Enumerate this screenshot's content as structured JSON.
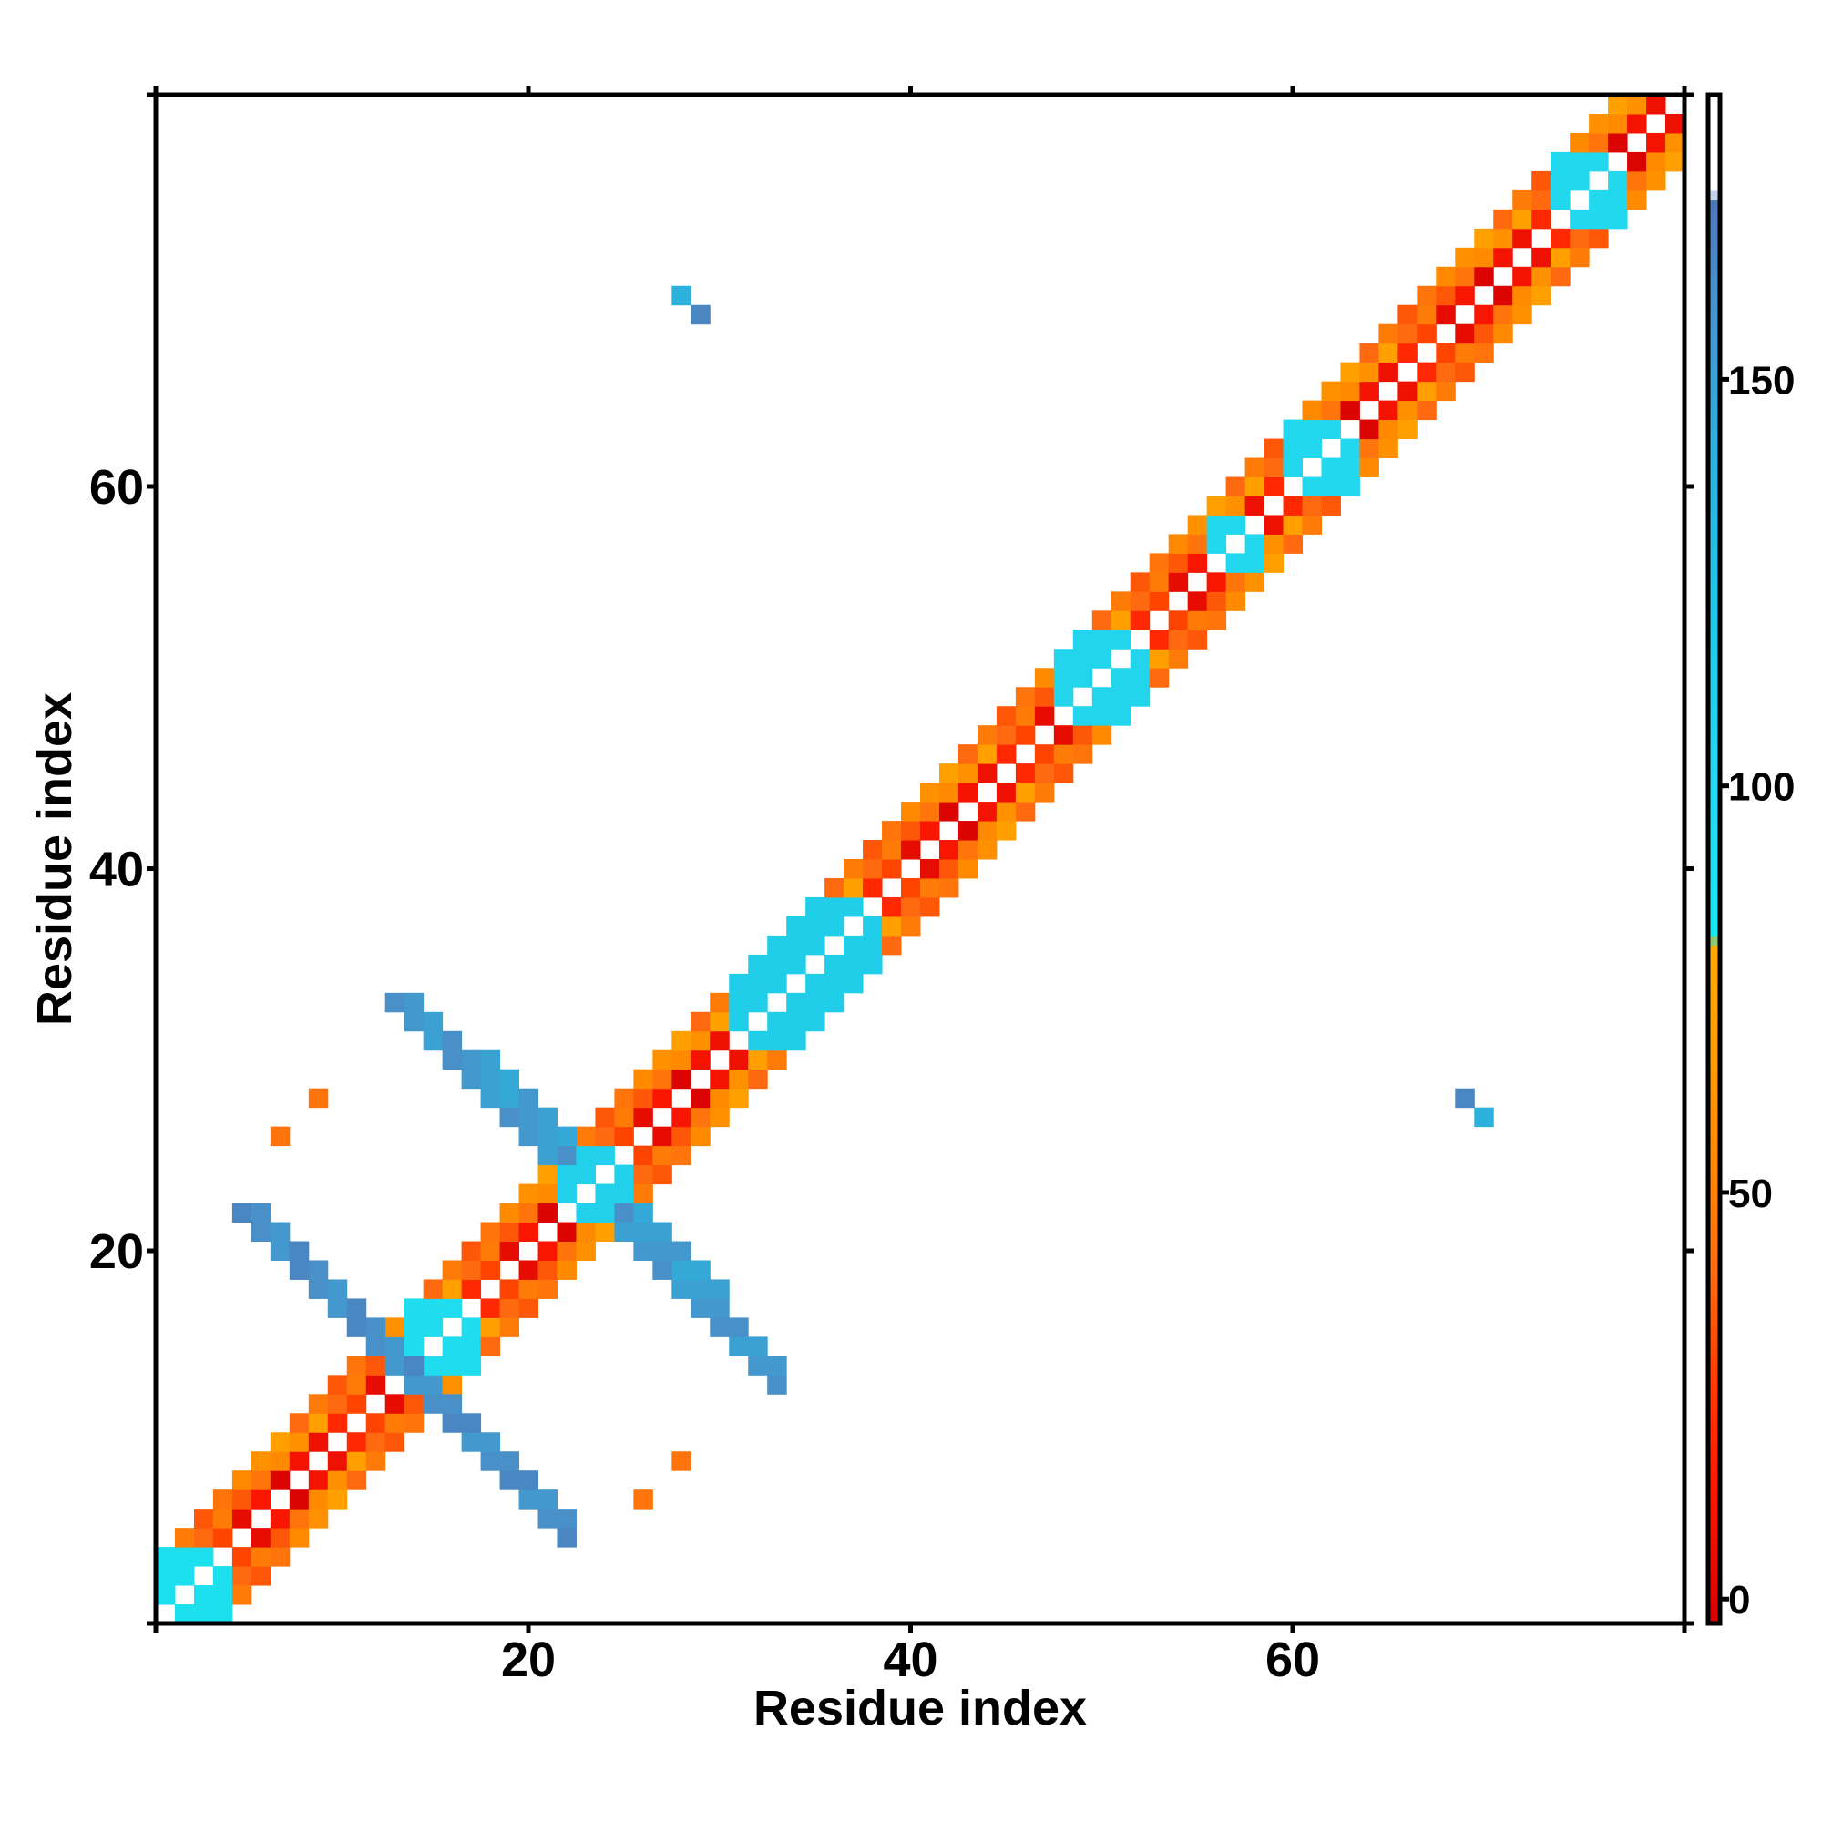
{
  "chart_data": {
    "type": "heatmap",
    "title": "",
    "xlabel": "Residue index",
    "ylabel": "Residue index",
    "xlim": [
      0.5,
      80.5
    ],
    "ylim": [
      0.5,
      80.5
    ],
    "x_ticks": [
      20,
      40,
      60
    ],
    "y_ticks": [
      20,
      40,
      60
    ],
    "colorbar": {
      "range": [
        -3,
        185
      ],
      "ticks": [
        0,
        50,
        100,
        150
      ],
      "stops": [
        {
          "v": -3,
          "c": "#d40000"
        },
        {
          "v": 15,
          "c": "#ff1a00"
        },
        {
          "v": 30,
          "c": "#ff4400"
        },
        {
          "v": 40,
          "c": "#ff6a10"
        },
        {
          "v": 55,
          "c": "#ff8a00"
        },
        {
          "v": 70,
          "c": "#ffa000"
        },
        {
          "v": 80,
          "c": "#ffaa00"
        },
        {
          "v": 82,
          "c": "#18e6ee"
        },
        {
          "v": 100,
          "c": "#22d8ee"
        },
        {
          "v": 120,
          "c": "#20c8e6"
        },
        {
          "v": 140,
          "c": "#2cb0dc"
        },
        {
          "v": 160,
          "c": "#4a90c8"
        },
        {
          "v": 172,
          "c": "#4a78b8"
        },
        {
          "v": 173,
          "c": "#ffffff"
        },
        {
          "v": 185,
          "c": "#ffffff"
        }
      ]
    },
    "pattern_note": "checkerboard band along diagonal plus anti-parallel beta-hairpin bands",
    "diagonal_band": {
      "from": 1,
      "to": 80,
      "near_offsets": [
        1,
        2,
        3
      ],
      "helix_segments": [
        {
          "start": 1,
          "end": 4,
          "value": 90
        },
        {
          "start": 14,
          "end": 17,
          "value": 95
        },
        {
          "start": 22,
          "end": 25,
          "value": 110
        },
        {
          "start": 31,
          "end": 38,
          "value": 112
        },
        {
          "start": 48,
          "end": 52,
          "value": 105
        },
        {
          "start": 56,
          "end": 58,
          "value": 100
        },
        {
          "start": 60,
          "end": 63,
          "value": 100
        },
        {
          "start": 74,
          "end": 77,
          "value": 100
        }
      ]
    },
    "antiparallel_bands": [
      {
        "i_start": 5,
        "j_start": 22,
        "length": 9,
        "value": 165
      },
      {
        "i_start": 13,
        "j_start": 33,
        "length": 9,
        "value": 160
      },
      {
        "i_start": 17,
        "j_start": 30,
        "length": 5,
        "value": 155
      }
    ],
    "isolated_cells": [
      {
        "x": 28,
        "y": 70,
        "value": 140
      },
      {
        "x": 29,
        "y": 69,
        "value": 165
      },
      {
        "x": 9,
        "y": 28,
        "value": 45
      },
      {
        "x": 7,
        "y": 26,
        "value": 45
      },
      {
        "x": 28,
        "y": 9,
        "value": 45
      },
      {
        "x": 26,
        "y": 7,
        "value": 45
      },
      {
        "x": 69,
        "y": 28,
        "value": 165
      },
      {
        "x": 70,
        "y": 27,
        "value": 140
      }
    ]
  }
}
